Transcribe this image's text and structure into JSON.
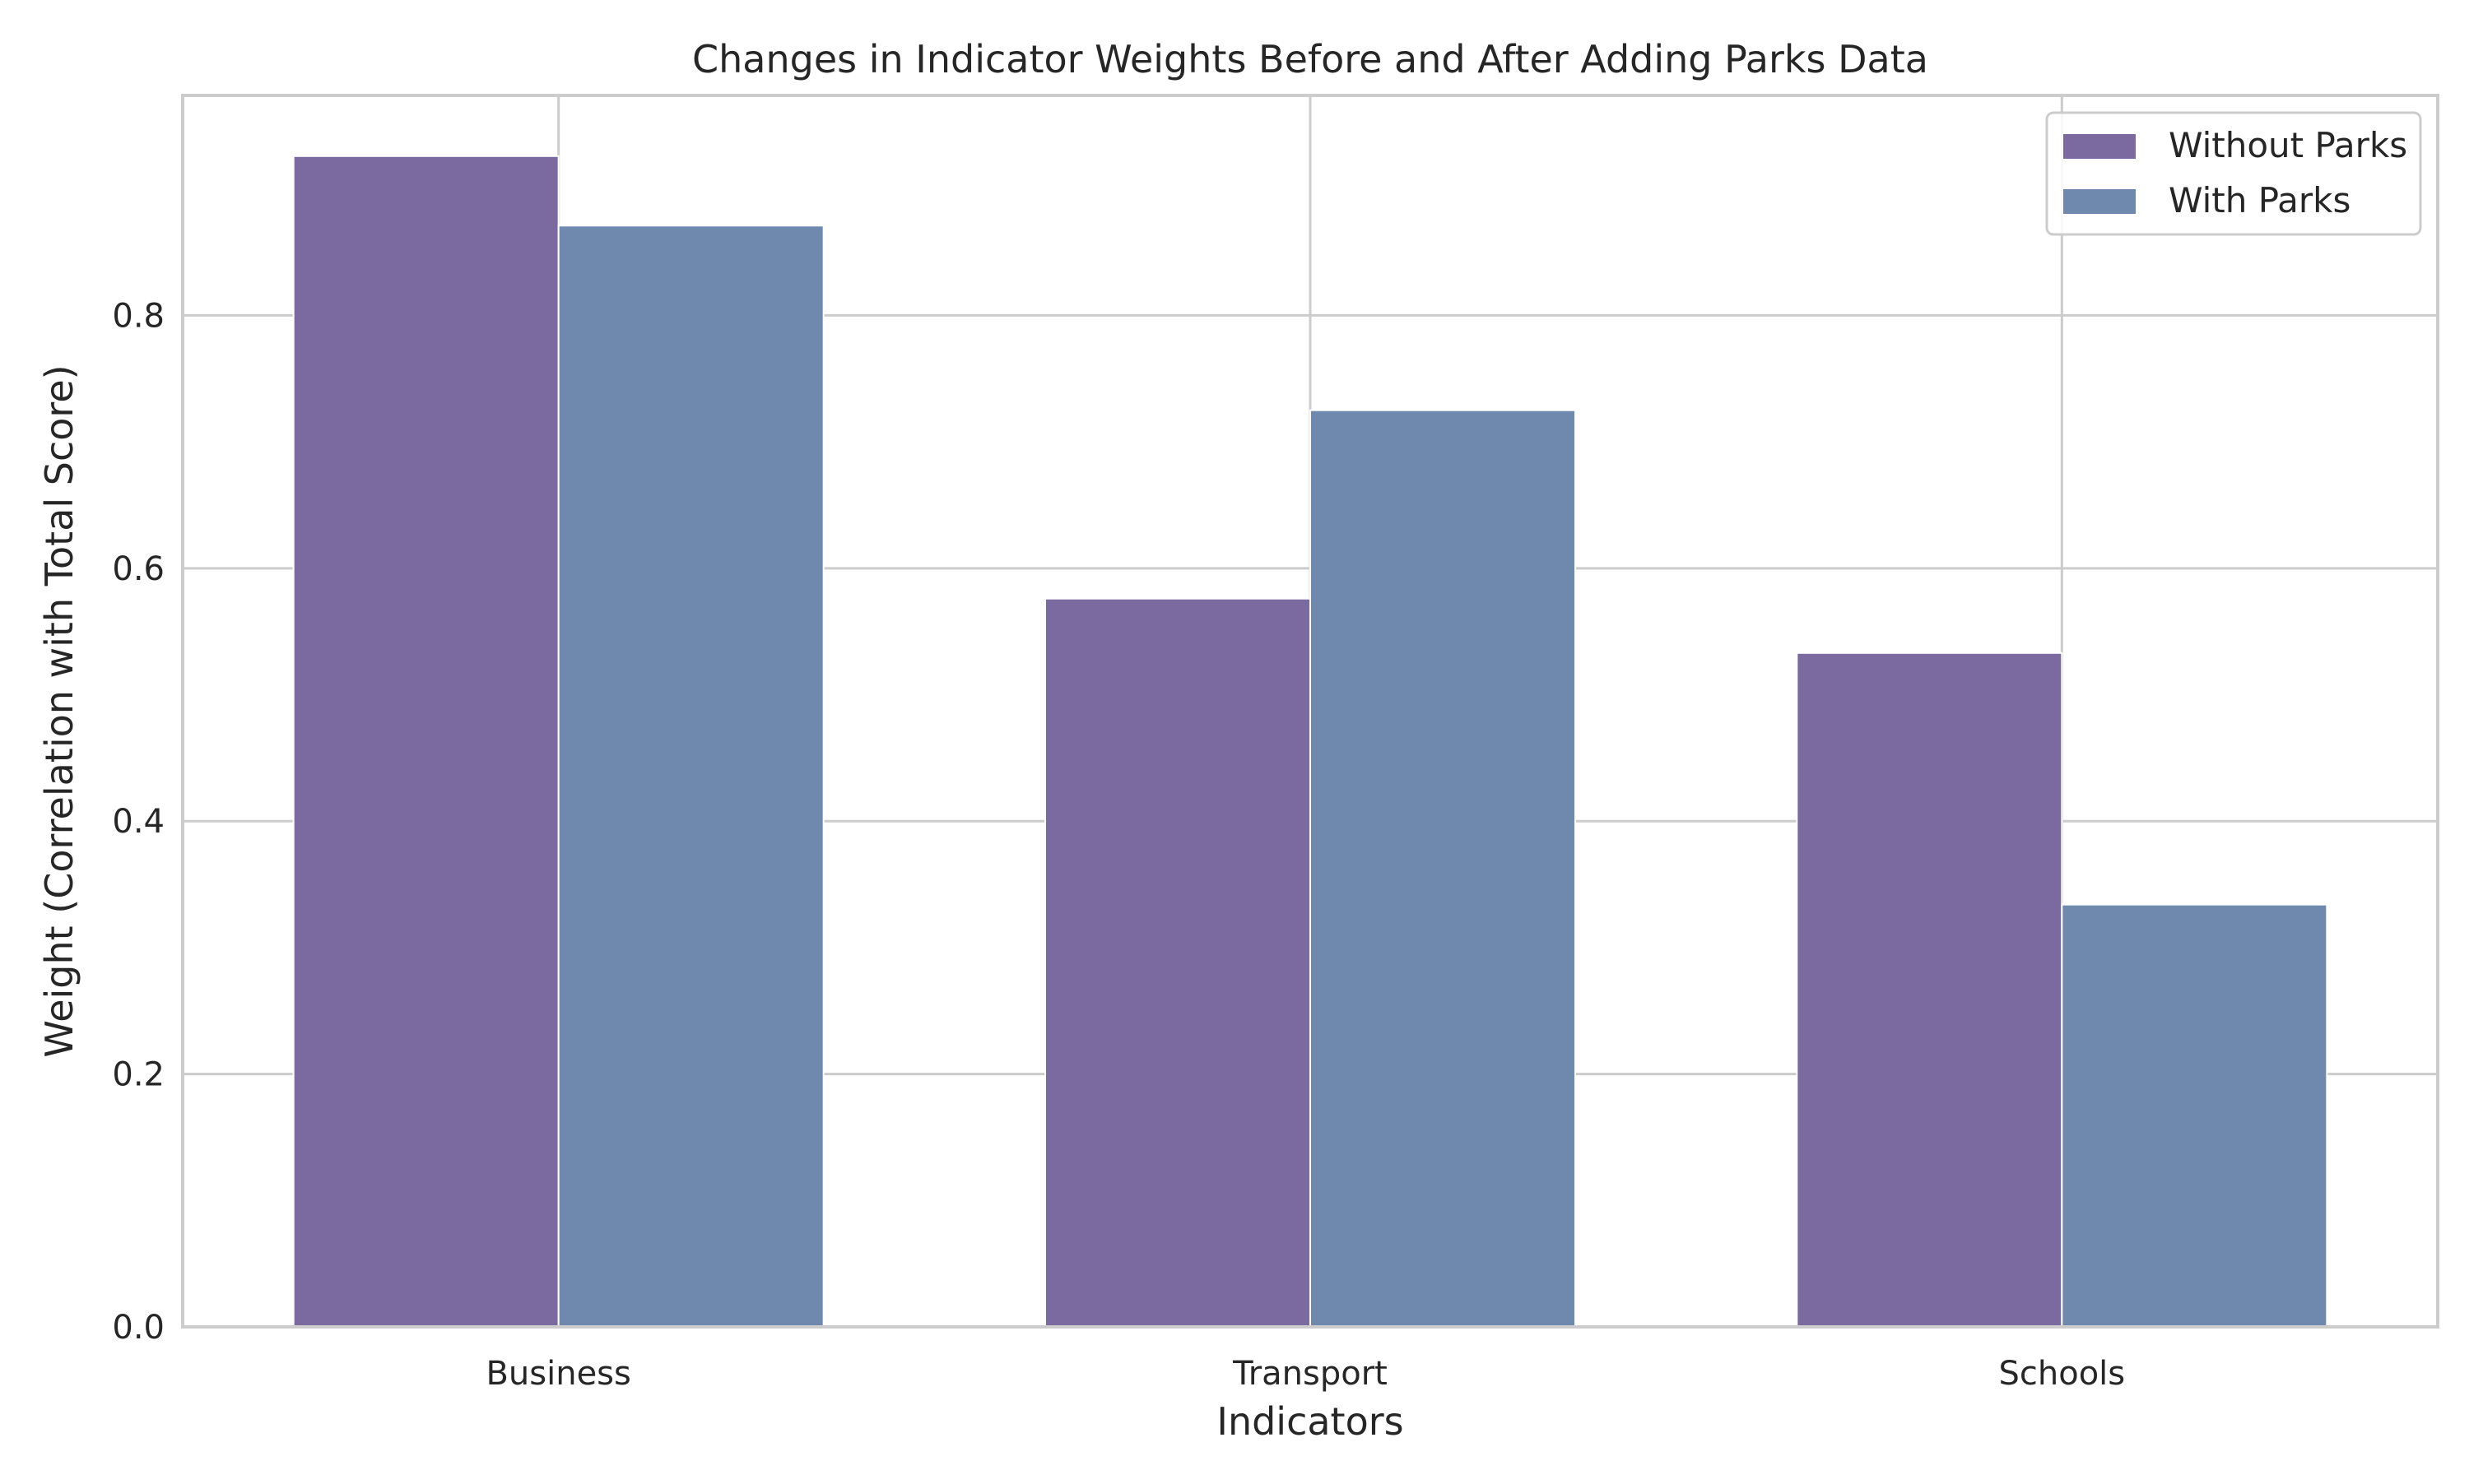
{
  "chart_data": {
    "type": "bar",
    "title": "Changes in Indicator Weights Before and After Adding Parks Data",
    "xlabel": "Indicators",
    "ylabel": "Weight (Correlation with Total Score)",
    "categories": [
      "Business",
      "Transport",
      "Schools"
    ],
    "series": [
      {
        "name": "Without Parks",
        "values": [
          0.926,
          0.576,
          0.533
        ],
        "color": "#7b6a9f"
      },
      {
        "name": "With Parks",
        "values": [
          0.871,
          0.725,
          0.334
        ],
        "color": "#6e89ad"
      }
    ],
    "ylim": [
      0,
      0.974
    ],
    "yticks": [
      0.0,
      0.2,
      0.4,
      0.6,
      0.8
    ],
    "ytick_labels": [
      "0.0",
      "0.2",
      "0.4",
      "0.6",
      "0.8"
    ],
    "grid": true,
    "legend_position": "top-right"
  }
}
